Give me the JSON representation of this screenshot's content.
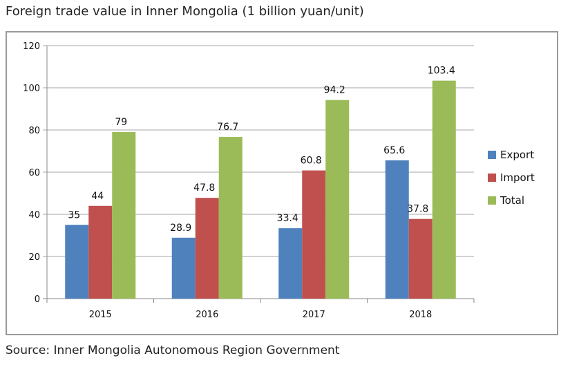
{
  "title": "Foreign trade value in Inner Mongolia (1 billion yuan/unit)",
  "source": "Source: Inner Mongolia Autonomous Region Government",
  "chart_data": {
    "type": "bar",
    "categories": [
      "2015",
      "2016",
      "2017",
      "2018"
    ],
    "series": [
      {
        "name": "Export",
        "values": [
          35,
          28.9,
          33.4,
          65.6
        ],
        "color": "#4f81bd"
      },
      {
        "name": "Import",
        "values": [
          44,
          47.8,
          60.8,
          37.8
        ],
        "color": "#c0504d"
      },
      {
        "name": "Total",
        "values": [
          79,
          76.7,
          94.2,
          103.4
        ],
        "color": "#9bbb59"
      }
    ],
    "data_labels": [
      [
        "35",
        "28.9",
        "33.4",
        "65.6"
      ],
      [
        "44",
        "47.8",
        "60.8",
        "37.8"
      ],
      [
        "79",
        "76.7",
        "94.2",
        "103.4"
      ]
    ],
    "y_ticks": [
      "0",
      "20",
      "40",
      "60",
      "80",
      "100",
      "120"
    ],
    "ylim": [
      0,
      120
    ],
    "grid": true,
    "legend_position": "right"
  }
}
